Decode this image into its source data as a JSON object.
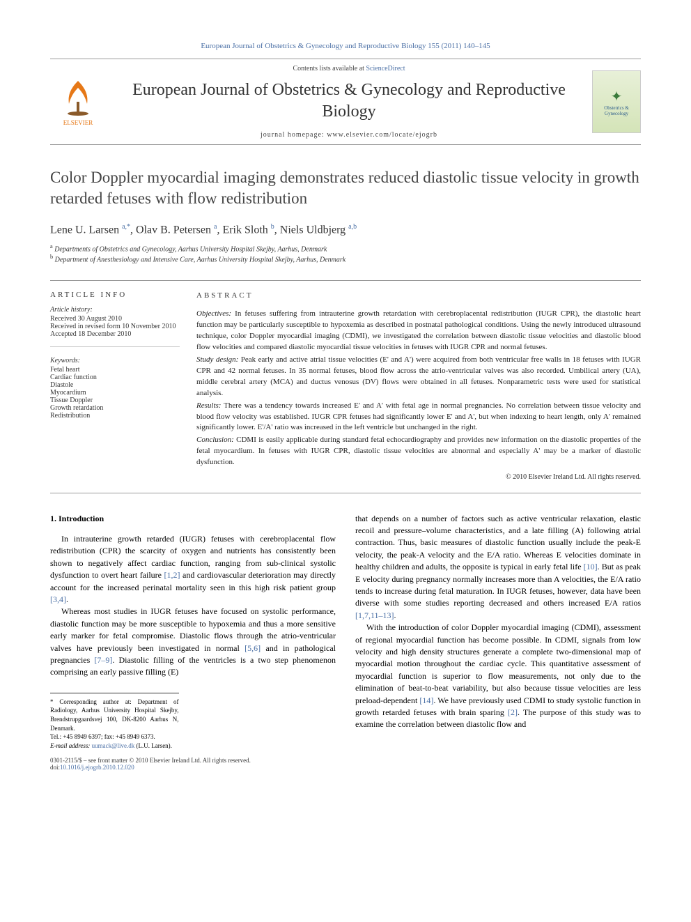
{
  "journal_header": "European Journal of Obstetrics & Gynecology and Reproductive Biology 155 (2011) 140–145",
  "header": {
    "contents_prefix": "Contents lists available at ",
    "contents_link": "ScienceDirect",
    "journal_name": "European Journal of Obstetrics & Gynecology and Reproductive Biology",
    "homepage_label": "journal homepage: www.elsevier.com/locate/ejogrb",
    "publisher": "ELSEVIER",
    "cover_text": "Obstetrics & Gynecology"
  },
  "title": "Color Doppler myocardial imaging demonstrates reduced diastolic tissue velocity in growth retarded fetuses with flow redistribution",
  "authors_html": "Lene U. Larsen <sup>a,*</sup>, Olav B. Petersen <sup>a</sup>, Erik Sloth <sup>b</sup>, Niels Uldbjerg <sup>a,b</sup>",
  "affiliations": [
    {
      "sup": "a",
      "text": "Departments of Obstetrics and Gynecology, Aarhus University Hospital Skejby, Aarhus, Denmark"
    },
    {
      "sup": "b",
      "text": "Department of Anesthesiology and Intensive Care, Aarhus University Hospital Skejby, Aarhus, Denmark"
    }
  ],
  "article_info": {
    "heading": "ARTICLE INFO",
    "history_label": "Article history:",
    "history": [
      "Received 30 August 2010",
      "Received in revised form 10 November 2010",
      "Accepted 18 December 2010"
    ],
    "keywords_label": "Keywords:",
    "keywords": [
      "Fetal heart",
      "Cardiac function",
      "Diastole",
      "Myocardium",
      "Tissue Doppler",
      "Growth retardation",
      "Redistribution"
    ]
  },
  "abstract": {
    "heading": "ABSTRACT",
    "objectives_label": "Objectives:",
    "objectives": "In fetuses suffering from intrauterine growth retardation with cerebroplacental redistribution (IUGR CPR), the diastolic heart function may be particularly susceptible to hypoxemia as described in postnatal pathological conditions. Using the newly introduced ultrasound technique, color Doppler myocardial imaging (CDMI), we investigated the correlation between diastolic tissue velocities and diastolic blood flow velocities and compared diastolic myocardial tissue velocities in fetuses with IUGR CPR and normal fetuses.",
    "design_label": "Study design:",
    "design": "Peak early and active atrial tissue velocities (E' and A') were acquired from both ventricular free walls in 18 fetuses with IUGR CPR and 42 normal fetuses. In 35 normal fetuses, blood flow across the atrio-ventricular valves was also recorded. Umbilical artery (UA), middle cerebral artery (MCA) and ductus venosus (DV) flows were obtained in all fetuses. Nonparametric tests were used for statistical analysis.",
    "results_label": "Results:",
    "results": "There was a tendency towards increased E' and A' with fetal age in normal pregnancies. No correlation between tissue velocity and blood flow velocity was established. IUGR CPR fetuses had significantly lower E' and A', but when indexing to heart length, only A' remained significantly lower. E'/A' ratio was increased in the left ventricle but unchanged in the right.",
    "conclusion_label": "Conclusion:",
    "conclusion": "CDMI is easily applicable during standard fetal echocardiography and provides new information on the diastolic properties of the fetal myocardium. In fetuses with IUGR CPR, diastolic tissue velocities are abnormal and especially A' may be a marker of diastolic dysfunction.",
    "copyright": "© 2010 Elsevier Ireland Ltd. All rights reserved."
  },
  "body": {
    "section_heading": "1. Introduction",
    "col1_p1": "In intrauterine growth retarded (IUGR) fetuses with cerebroplacental flow redistribution (CPR) the scarcity of oxygen and nutrients has consistently been shown to negatively affect cardiac function, ranging from sub-clinical systolic dysfunction to overt heart failure [1,2] and cardiovascular deterioration may directly account for the increased perinatal mortality seen in this high risk patient group [3,4].",
    "col1_p2": "Whereas most studies in IUGR fetuses have focused on systolic performance, diastolic function may be more susceptible to hypoxemia and thus a more sensitive early marker for fetal compromise. Diastolic flows through the atrio-ventricular valves have previously been investigated in normal [5,6] and in pathological pregnancies [7–9]. Diastolic filling of the ventricles is a two step phenomenon comprising an early passive filling (E)",
    "col2_p1": "that depends on a number of factors such as active ventricular relaxation, elastic recoil and pressure–volume characteristics, and a late filling (A) following atrial contraction. Thus, basic measures of diastolic function usually include the peak-E velocity, the peak-A velocity and the E/A ratio. Whereas E velocities dominate in healthy children and adults, the opposite is typical in early fetal life [10]. But as peak E velocity during pregnancy normally increases more than A velocities, the E/A ratio tends to increase during fetal maturation. In IUGR fetuses, however, data have been diverse with some studies reporting decreased and others increased E/A ratios [1,7,11–13].",
    "col2_p2": "With the introduction of color Doppler myocardial imaging (CDMI), assessment of regional myocardial function has become possible. In CDMI, signals from low velocity and high density structures generate a complete two-dimensional map of myocardial motion throughout the cardiac cycle. This quantitative assessment of myocardial function is superior to flow measurements, not only due to the elimination of beat-to-beat variability, but also because tissue velocities are less preload-dependent [14]. We have previously used CDMI to study systolic function in growth retarded fetuses with brain sparing [2]. The purpose of this study was to examine the correlation between diastolic flow and"
  },
  "corresponding": {
    "text": "* Corresponding author at: Department of Radiology, Aarhus University Hospital Skejby, Brendstrupgaardsvej 100, DK-8200 Aarhus N, Denmark.",
    "tel": "Tel.: +45 8949 6397; fax: +45 8949 6373.",
    "email_label": "E-mail address:",
    "email": "uumack@live.dk",
    "email_suffix": "(L.U. Larsen)."
  },
  "footer": {
    "line1": "0301-2115/$ – see front matter © 2010 Elsevier Ireland Ltd. All rights reserved.",
    "doi_prefix": "doi:",
    "doi": "10.1016/j.ejogrb.2010.12.020"
  },
  "colors": {
    "link": "#4a6fa5",
    "text": "#222222",
    "border": "#999999",
    "elsevier_orange": "#e67817"
  }
}
